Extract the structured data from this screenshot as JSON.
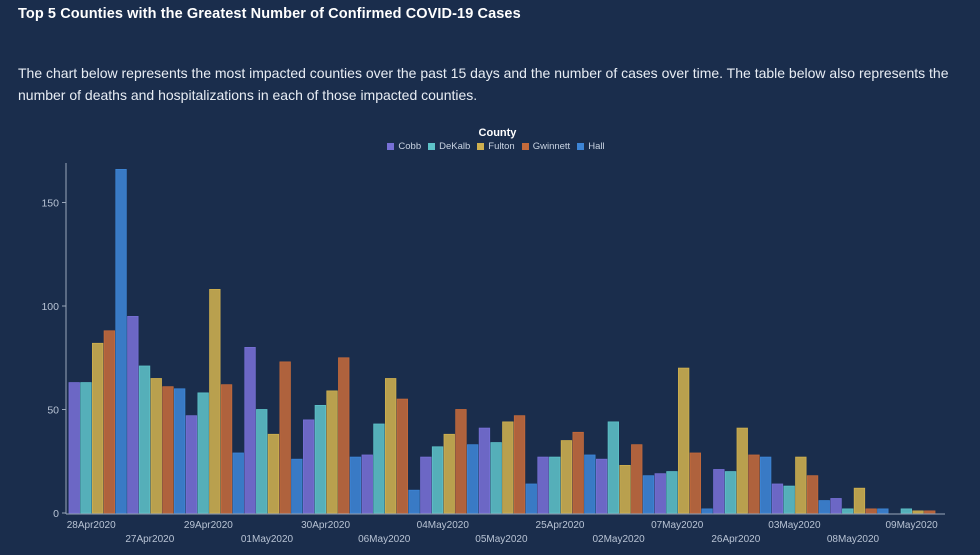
{
  "header": {
    "title": "Top 5 Counties with the Greatest Number of Confirmed COVID-19 Cases",
    "description": "The chart below represents the most impacted counties over the past 15 days and the number of cases over time. The table below also represents the number of deaths and hospitalizations in each of those impacted counties."
  },
  "legend": {
    "title": "County",
    "items": [
      {
        "label": "Cobb",
        "color": "#7770d6"
      },
      {
        "label": "DeKalb",
        "color": "#5dc2c8"
      },
      {
        "label": "Fulton",
        "color": "#cfb04f"
      },
      {
        "label": "Gwinnett",
        "color": "#c46a3b"
      },
      {
        "label": "Hall",
        "color": "#3d85d6"
      }
    ]
  },
  "chart_data": {
    "type": "bar",
    "title": "",
    "xlabel": "",
    "ylabel": "",
    "ylim": [
      0,
      170
    ],
    "yticks": [
      0,
      50,
      100,
      150
    ],
    "grid": false,
    "legend_position": "top-center",
    "categories": [
      "28Apr2020",
      "27Apr2020",
      "29Apr2020",
      "01May2020",
      "30Apr2020",
      "06May2020",
      "04May2020",
      "05May2020",
      "25Apr2020",
      "02May2020",
      "07May2020",
      "26Apr2020",
      "03May2020",
      "08May2020",
      "09May2020"
    ],
    "series": [
      {
        "name": "Cobb",
        "values": [
          63,
          95,
          47,
          80,
          45,
          28,
          27,
          41,
          27,
          26,
          19,
          21,
          14,
          7,
          0
        ]
      },
      {
        "name": "DeKalb",
        "values": [
          63,
          71,
          58,
          50,
          52,
          43,
          32,
          34,
          27,
          44,
          20,
          20,
          13,
          2,
          2
        ]
      },
      {
        "name": "Fulton",
        "values": [
          82,
          65,
          108,
          38,
          59,
          65,
          38,
          44,
          35,
          23,
          70,
          41,
          27,
          12,
          1
        ]
      },
      {
        "name": "Gwinnett",
        "values": [
          88,
          61,
          62,
          73,
          75,
          55,
          50,
          47,
          39,
          33,
          29,
          28,
          18,
          2,
          1
        ]
      },
      {
        "name": "Hall",
        "values": [
          166,
          60,
          29,
          26,
          27,
          11,
          33,
          14,
          28,
          18,
          2,
          27,
          6,
          2,
          0
        ]
      }
    ]
  }
}
